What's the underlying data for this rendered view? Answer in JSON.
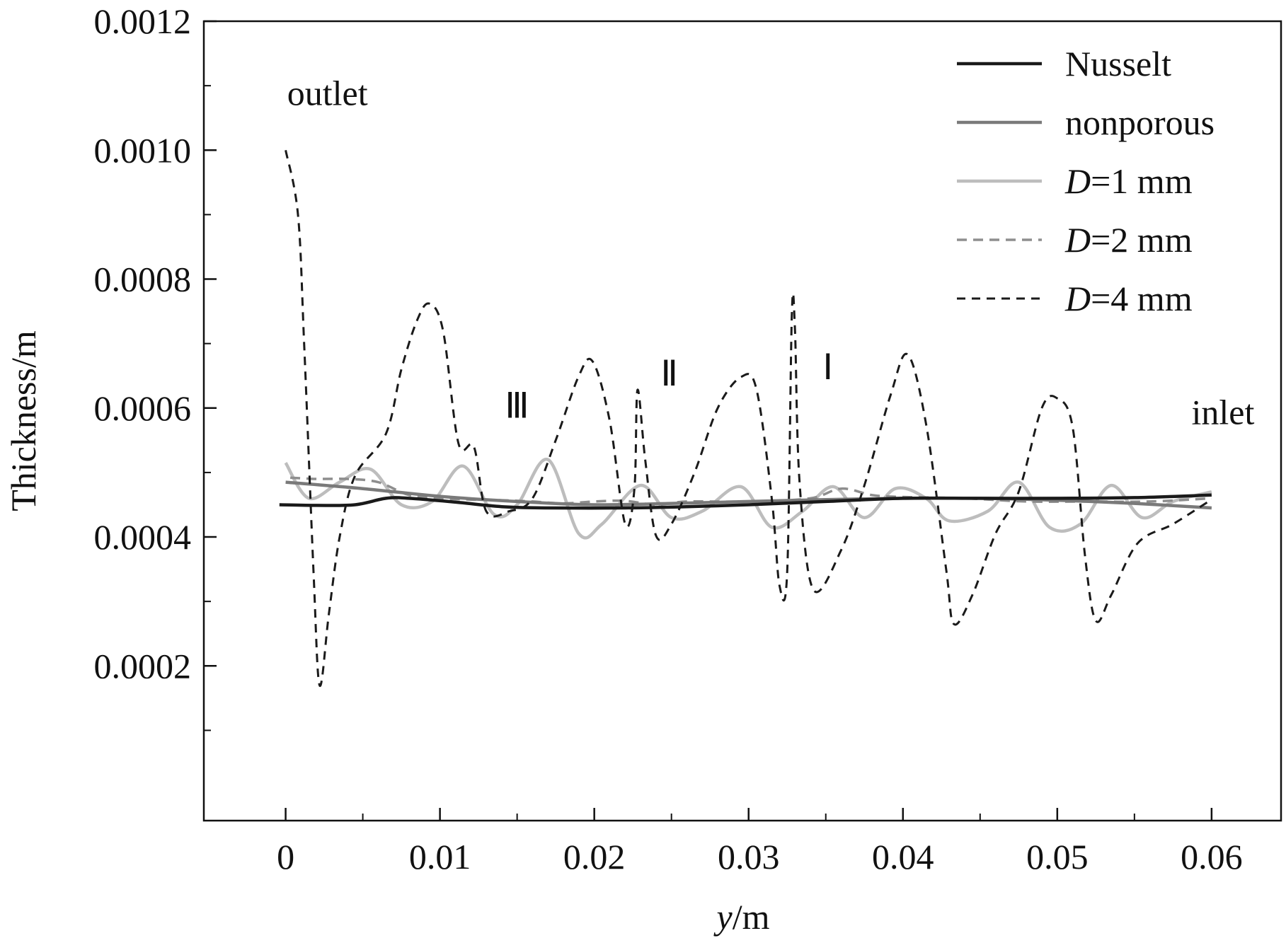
{
  "chart_data": {
    "type": "line",
    "xlabel_italic": "y",
    "xlabel_unit": "/m",
    "ylabel": "Thickness/m",
    "xlim": [
      -0.0053,
      0.0645
    ],
    "ylim": [
      -4e-05,
      0.0012
    ],
    "xticks": [
      {
        "value": 0,
        "label": "0"
      },
      {
        "value": 0.01,
        "label": "0.01"
      },
      {
        "value": 0.02,
        "label": "0.02"
      },
      {
        "value": 0.03,
        "label": "0.03"
      },
      {
        "value": 0.04,
        "label": "0.04"
      },
      {
        "value": 0.05,
        "label": "0.05"
      },
      {
        "value": 0.06,
        "label": "0.06"
      }
    ],
    "xminor": [
      0.005,
      0.015,
      0.025,
      0.035,
      0.045,
      0.055
    ],
    "yticks": [
      {
        "value": 0.0002,
        "label": "0.0002"
      },
      {
        "value": 0.0004,
        "label": "0.0004"
      },
      {
        "value": 0.0006,
        "label": "0.0006"
      },
      {
        "value": 0.0008,
        "label": "0.0008"
      },
      {
        "value": 0.001,
        "label": "0.0010"
      },
      {
        "value": 0.0012,
        "label": "0.0012"
      }
    ],
    "yminor": [
      0.0001,
      0.0003,
      0.0005,
      0.0007,
      0.0009,
      0.0011
    ],
    "legend": {
      "position": "top-right"
    },
    "grid": false,
    "annotations": [
      {
        "text": "outlet",
        "x": 0.0001,
        "y": 0.00107
      },
      {
        "text": "inlet",
        "x": 0.0587,
        "y": 0.000575
      },
      {
        "text": "Ⅲ",
        "x": 0.0142,
        "y": 0.000585
      },
      {
        "text": "Ⅱ",
        "x": 0.0243,
        "y": 0.000635
      },
      {
        "text": "Ⅰ",
        "x": 0.0348,
        "y": 0.000645
      }
    ],
    "series": [
      {
        "name": "Nusselt",
        "name_italic": "",
        "name_suffix": "",
        "color": "#1a1a1a",
        "width": 4.5,
        "dash": "",
        "points": [
          [
            -0.0004,
            0.00045
          ],
          [
            0.002,
            0.000449
          ],
          [
            0.0045,
            0.00045
          ],
          [
            0.0065,
            0.00046
          ],
          [
            0.008,
            0.00046
          ],
          [
            0.011,
            0.000454
          ],
          [
            0.014,
            0.000447
          ],
          [
            0.017,
            0.000445
          ],
          [
            0.022,
            0.000445
          ],
          [
            0.026,
            0.000447
          ],
          [
            0.03,
            0.00045
          ],
          [
            0.035,
            0.000455
          ],
          [
            0.04,
            0.00046
          ],
          [
            0.045,
            0.00046
          ],
          [
            0.05,
            0.00046
          ],
          [
            0.055,
            0.000461
          ],
          [
            0.06,
            0.000465
          ]
        ]
      },
      {
        "name": "nonporous",
        "name_italic": "",
        "name_suffix": "",
        "color": "#7a7a7a",
        "width": 4.5,
        "dash": "",
        "points": [
          [
            0,
            0.000485
          ],
          [
            0.005,
            0.000475
          ],
          [
            0.01,
            0.000463
          ],
          [
            0.015,
            0.000455
          ],
          [
            0.02,
            0.00045
          ],
          [
            0.025,
            0.000452
          ],
          [
            0.03,
            0.000455
          ],
          [
            0.035,
            0.000458
          ],
          [
            0.04,
            0.00046
          ],
          [
            0.045,
            0.00046
          ],
          [
            0.05,
            0.000457
          ],
          [
            0.055,
            0.000452
          ],
          [
            0.06,
            0.000445
          ]
        ]
      },
      {
        "name": "",
        "name_italic": "D",
        "name_suffix": "=1 mm",
        "color": "#bdbdbd",
        "width": 4.5,
        "dash": "",
        "points": [
          [
            0,
            0.000515
          ],
          [
            0.0015,
            0.00046
          ],
          [
            0.0035,
            0.000485
          ],
          [
            0.0055,
            0.000505
          ],
          [
            0.0075,
            0.00045
          ],
          [
            0.0095,
            0.000455
          ],
          [
            0.0115,
            0.00051
          ],
          [
            0.0135,
            0.000435
          ],
          [
            0.015,
            0.00045
          ],
          [
            0.017,
            0.00052
          ],
          [
            0.019,
            0.000405
          ],
          [
            0.0205,
            0.00042
          ],
          [
            0.023,
            0.00048
          ],
          [
            0.025,
            0.00043
          ],
          [
            0.027,
            0.00044
          ],
          [
            0.0295,
            0.000478
          ],
          [
            0.0315,
            0.000415
          ],
          [
            0.0335,
            0.00044
          ],
          [
            0.0355,
            0.000478
          ],
          [
            0.0375,
            0.00043
          ],
          [
            0.0395,
            0.000475
          ],
          [
            0.0415,
            0.00046
          ],
          [
            0.043,
            0.000425
          ],
          [
            0.0455,
            0.00044
          ],
          [
            0.0475,
            0.000485
          ],
          [
            0.0495,
            0.000415
          ],
          [
            0.0515,
            0.00042
          ],
          [
            0.0535,
            0.00048
          ],
          [
            0.0555,
            0.00043
          ],
          [
            0.0575,
            0.000455
          ],
          [
            0.06,
            0.00047
          ]
        ]
      },
      {
        "name": "",
        "name_italic": "D",
        "name_suffix": "=2 mm",
        "color": "#8e8e8e",
        "width": 3.5,
        "dash": "14,9",
        "points": [
          [
            0.0003,
            0.000492
          ],
          [
            0.002,
            0.00049
          ],
          [
            0.004,
            0.00049
          ],
          [
            0.006,
            0.000485
          ],
          [
            0.008,
            0.000465
          ],
          [
            0.01,
            0.00046
          ],
          [
            0.012,
            0.000458
          ],
          [
            0.014,
            0.000457
          ],
          [
            0.016,
            0.000455
          ],
          [
            0.018,
            0.000452
          ],
          [
            0.02,
            0.000455
          ],
          [
            0.022,
            0.000456
          ],
          [
            0.024,
            0.00045
          ],
          [
            0.026,
            0.000455
          ],
          [
            0.03,
            0.000455
          ],
          [
            0.034,
            0.00046
          ],
          [
            0.036,
            0.000475
          ],
          [
            0.038,
            0.000465
          ],
          [
            0.04,
            0.000462
          ],
          [
            0.044,
            0.00046
          ],
          [
            0.048,
            0.000455
          ],
          [
            0.052,
            0.000455
          ],
          [
            0.056,
            0.000455
          ],
          [
            0.06,
            0.00046
          ]
        ]
      },
      {
        "name": "",
        "name_italic": "D",
        "name_suffix": "=4 mm",
        "color": "#1a1a1a",
        "width": 3,
        "dash": "12,9",
        "points": [
          [
            0,
            0.001
          ],
          [
            0.0008,
            0.0009
          ],
          [
            0.0012,
            0.0007
          ],
          [
            0.0018,
            0.00035
          ],
          [
            0.0022,
            0.00017
          ],
          [
            0.0028,
            0.00028
          ],
          [
            0.0035,
            0.0004
          ],
          [
            0.0045,
            0.000495
          ],
          [
            0.0065,
            0.00056
          ],
          [
            0.0075,
            0.00066
          ],
          [
            0.0085,
            0.000735
          ],
          [
            0.0093,
            0.000762
          ],
          [
            0.0102,
            0.00072
          ],
          [
            0.0112,
            0.000545
          ],
          [
            0.0122,
            0.00054
          ],
          [
            0.013,
            0.00044
          ],
          [
            0.0145,
            0.00044
          ],
          [
            0.016,
            0.00046
          ],
          [
            0.0175,
            0.00055
          ],
          [
            0.019,
            0.00065
          ],
          [
            0.0199,
            0.000672
          ],
          [
            0.021,
            0.00058
          ],
          [
            0.022,
            0.00042
          ],
          [
            0.0226,
            0.000475
          ],
          [
            0.0228,
            0.000628
          ],
          [
            0.0233,
            0.00052
          ],
          [
            0.024,
            0.000402
          ],
          [
            0.025,
            0.00042
          ],
          [
            0.0265,
            0.0005
          ],
          [
            0.028,
            0.0006
          ],
          [
            0.0295,
            0.000648
          ],
          [
            0.0305,
            0.00063
          ],
          [
            0.0315,
            0.00046
          ],
          [
            0.032,
            0.000325
          ],
          [
            0.0325,
            0.000345
          ],
          [
            0.0328,
            0.000745
          ],
          [
            0.033,
            0.000725
          ],
          [
            0.0333,
            0.000485
          ],
          [
            0.0342,
            0.000318
          ],
          [
            0.036,
            0.00038
          ],
          [
            0.0375,
            0.00048
          ],
          [
            0.0392,
            0.00062
          ],
          [
            0.0403,
            0.000683
          ],
          [
            0.0415,
            0.000575
          ],
          [
            0.0428,
            0.00035
          ],
          [
            0.0433,
            0.000265
          ],
          [
            0.0445,
            0.00031
          ],
          [
            0.046,
            0.000405
          ],
          [
            0.0475,
            0.00047
          ],
          [
            0.049,
            0.0006
          ],
          [
            0.05,
            0.000615
          ],
          [
            0.051,
            0.00057
          ],
          [
            0.0518,
            0.00037
          ],
          [
            0.0525,
            0.00027
          ],
          [
            0.0535,
            0.00031
          ],
          [
            0.0552,
            0.00039
          ],
          [
            0.0575,
            0.00042
          ],
          [
            0.0598,
            0.000455
          ]
        ]
      }
    ]
  }
}
